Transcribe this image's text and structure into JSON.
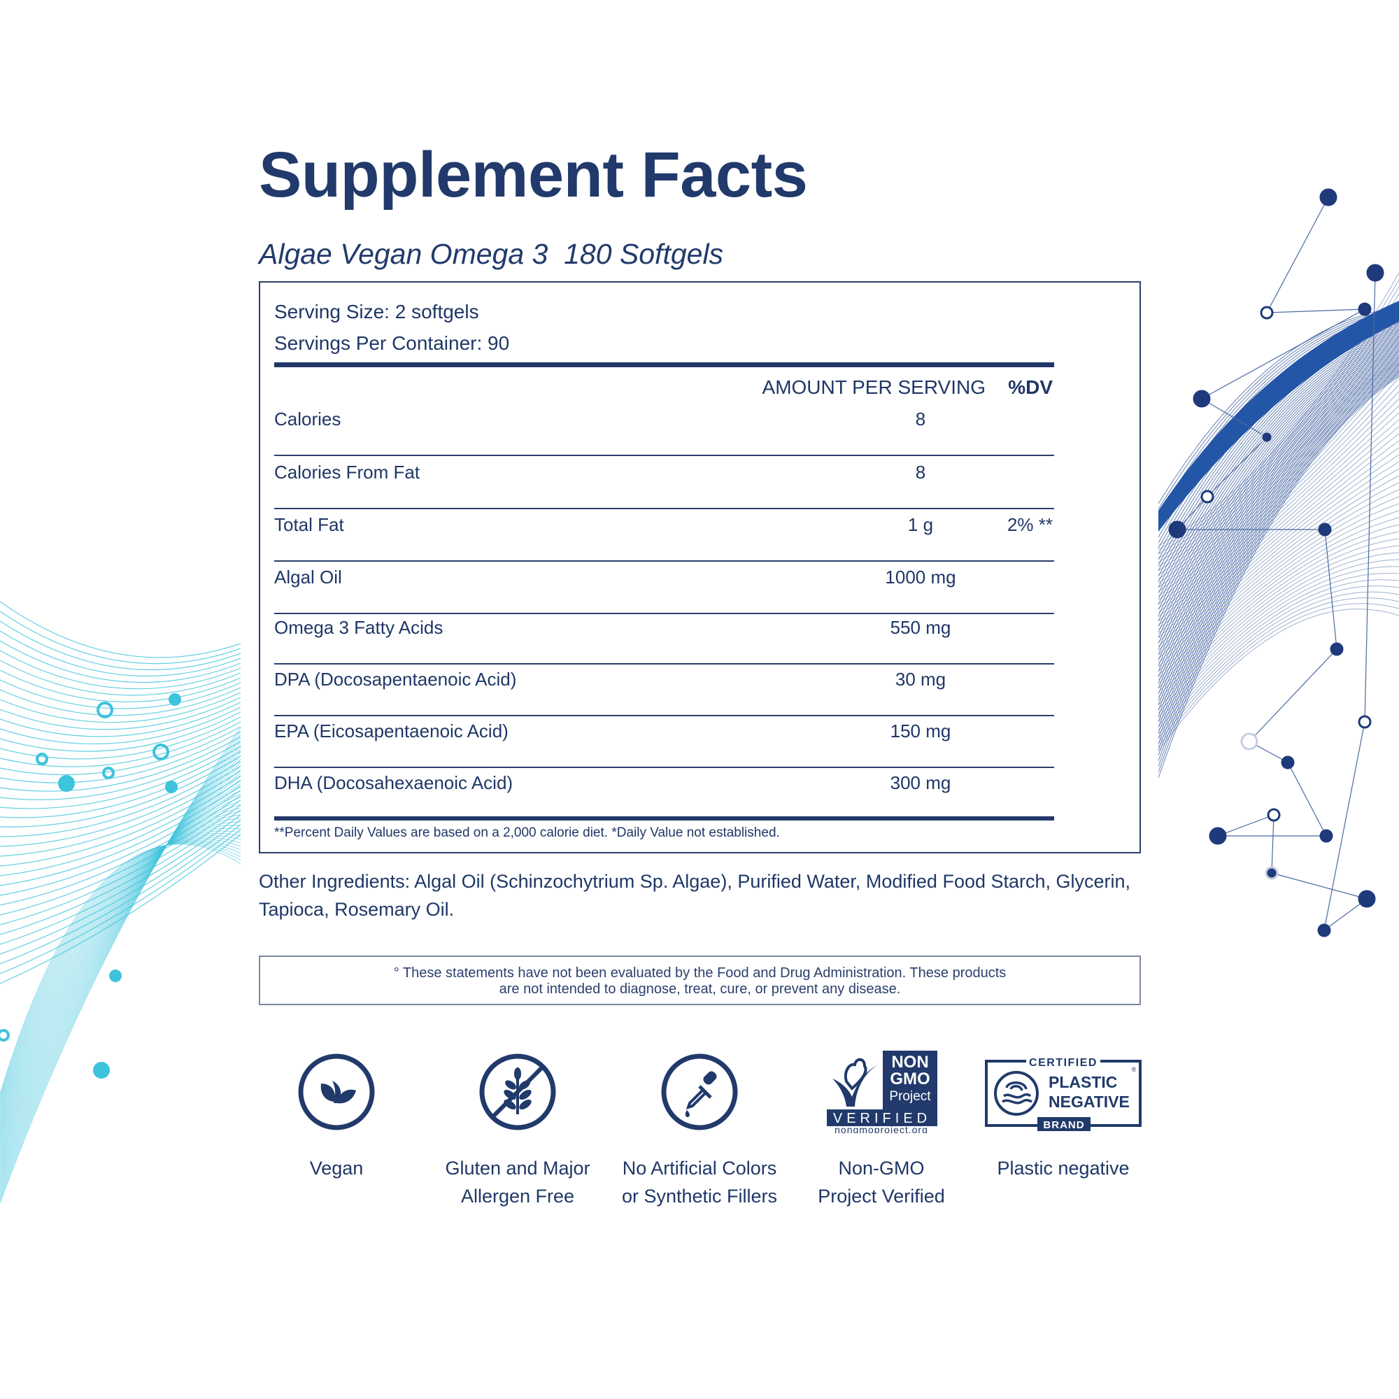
{
  "header": {
    "title": "Supplement Facts",
    "subtitle": "Algae Vegan Omega 3  180 Softgels"
  },
  "facts": {
    "serving_size": "Serving Size: 2 softgels",
    "servings_per_container": "Servings Per Container: 90",
    "col_amount": "AMOUNT PER SERVING",
    "col_dv": "%DV",
    "rows": [
      {
        "label": "Calories",
        "amount": "8",
        "dv": ""
      },
      {
        "label": "Calories From Fat",
        "amount": "8",
        "dv": ""
      },
      {
        "label": "Total Fat",
        "amount": "1 g",
        "dv": "2% **"
      },
      {
        "label": "Algal Oil",
        "amount": "1000 mg",
        "dv": ""
      },
      {
        "label": "Omega 3 Fatty Acids",
        "amount": "550 mg",
        "dv": ""
      },
      {
        "label": "DPA (Docosapentaenoic Acid)",
        "amount": "30 mg",
        "dv": ""
      },
      {
        "label": "EPA (Eicosapentaenoic Acid)",
        "amount": "150 mg",
        "dv": ""
      },
      {
        "label": "DHA (Docosahexaenoic Acid)",
        "amount": "300 mg",
        "dv": ""
      }
    ],
    "footnote": "**Percent Daily Values are based on a 2,000 calorie diet. *Daily Value not established."
  },
  "other_ingredients": "Other Ingredients: Algal Oil (Schinzochytrium Sp. Algae), Purified Water, Modified Food Starch, Glycerin, Tapioca, Rosemary Oil.",
  "disclaimer": {
    "line1": "° These statements have not been evaluated by the Food and Drug Administration. These products",
    "line2": "are not intended to diagnose, treat, cure, or prevent any disease."
  },
  "badges": [
    {
      "icon": "vegan-leaf-icon",
      "line1": "Vegan",
      "line2": ""
    },
    {
      "icon": "gluten-free-wheat-icon",
      "line1": "Gluten and Major",
      "line2": "Allergen Free"
    },
    {
      "icon": "dropper-icon",
      "line1": "No Artificial Colors",
      "line2": "or Synthetic Fillers"
    },
    {
      "icon": "non-gmo-logo",
      "line1": "Non-GMO",
      "line2": "Project Verified",
      "logo_text": [
        "NON",
        "GMO",
        "Project",
        "VERIFIED",
        "nongmoproject.org"
      ]
    },
    {
      "icon": "plastic-negative-logo",
      "line1": "Plastic negative",
      "line2": "",
      "logo_text": [
        "CERTIFIED",
        "PLASTIC",
        "NEGATIVE",
        "BRAND",
        "®"
      ]
    }
  ],
  "colors": {
    "navy": "#213a6b",
    "cyan": "#3ec3dc",
    "blue": "#2a5aa8"
  }
}
